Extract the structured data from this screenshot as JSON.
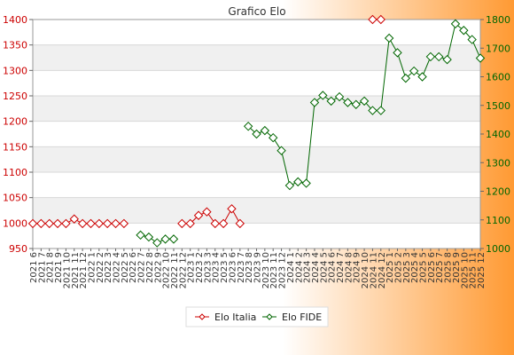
{
  "chart_data": {
    "type": "line",
    "title": "Grafico Elo",
    "left_axis": {
      "ylim": [
        950,
        1400
      ],
      "ticks": [
        950,
        1000,
        1050,
        1100,
        1150,
        1200,
        1250,
        1300,
        1350,
        1400
      ],
      "color": "#cc0000"
    },
    "right_axis": {
      "ylim": [
        1000,
        1800
      ],
      "ticks": [
        1000,
        1100,
        1200,
        1300,
        1400,
        1500,
        1600,
        1700,
        1800
      ],
      "color": "#006600"
    },
    "categories": [
      "2021 6",
      "2021 7",
      "2021 8",
      "2021 9",
      "2021 10",
      "2021 11",
      "2021 12",
      "2022 1",
      "2022 2",
      "2022 3",
      "2022 4",
      "2022 5",
      "2022 6",
      "2022 7",
      "2022 8",
      "2022 9",
      "2022 10",
      "2022 11",
      "2022 12",
      "2023 1",
      "2023 2",
      "2023 3",
      "2023 4",
      "2023 5",
      "2023 6",
      "2023 7",
      "2023 8",
      "2023 9",
      "2023 10",
      "2023 11",
      "2023 12",
      "2024 1",
      "2024 2",
      "2024 3",
      "2024 4",
      "2024 5",
      "2024 6",
      "2024 7",
      "2024 8",
      "2024 9",
      "2024 10",
      "2024 11",
      "2024 12",
      "2025 1",
      "2025 2",
      "2025 3",
      "2025 4",
      "2025 5",
      "2025 6",
      "2025 7",
      "2025 8",
      "2025 9",
      "2025 10",
      "2025 11",
      "2025 12"
    ],
    "series": [
      {
        "name": "Elo Italia",
        "axis": "left",
        "color": "#cc0000",
        "values": [
          999,
          999,
          999,
          999,
          999,
          1008,
          999,
          999,
          999,
          999,
          999,
          999,
          null,
          null,
          null,
          null,
          null,
          null,
          999,
          999,
          1015,
          1022,
          999,
          999,
          1028,
          999,
          null,
          null,
          null,
          null,
          null,
          null,
          null,
          null,
          null,
          null,
          null,
          null,
          null,
          null,
          null,
          1400,
          1400,
          null,
          null,
          null,
          null,
          null,
          null,
          null,
          null,
          null,
          null,
          null,
          null
        ]
      },
      {
        "name": "Elo FIDE",
        "axis": "right",
        "color": "#006600",
        "values": [
          null,
          null,
          null,
          null,
          null,
          null,
          null,
          null,
          null,
          null,
          null,
          null,
          null,
          1047,
          1040,
          1020,
          1033,
          1033,
          null,
          null,
          null,
          null,
          null,
          null,
          null,
          null,
          1427,
          1400,
          1412,
          1387,
          1342,
          1220,
          1233,
          1228,
          1510,
          1535,
          1515,
          1530,
          1510,
          1503,
          1515,
          1482,
          1482,
          1735,
          1684,
          1595,
          1620,
          1600,
          1670,
          1670,
          1660,
          1785,
          1762,
          1730,
          1665
        ]
      }
    ],
    "legend": {
      "placement": "bottom-center"
    }
  }
}
